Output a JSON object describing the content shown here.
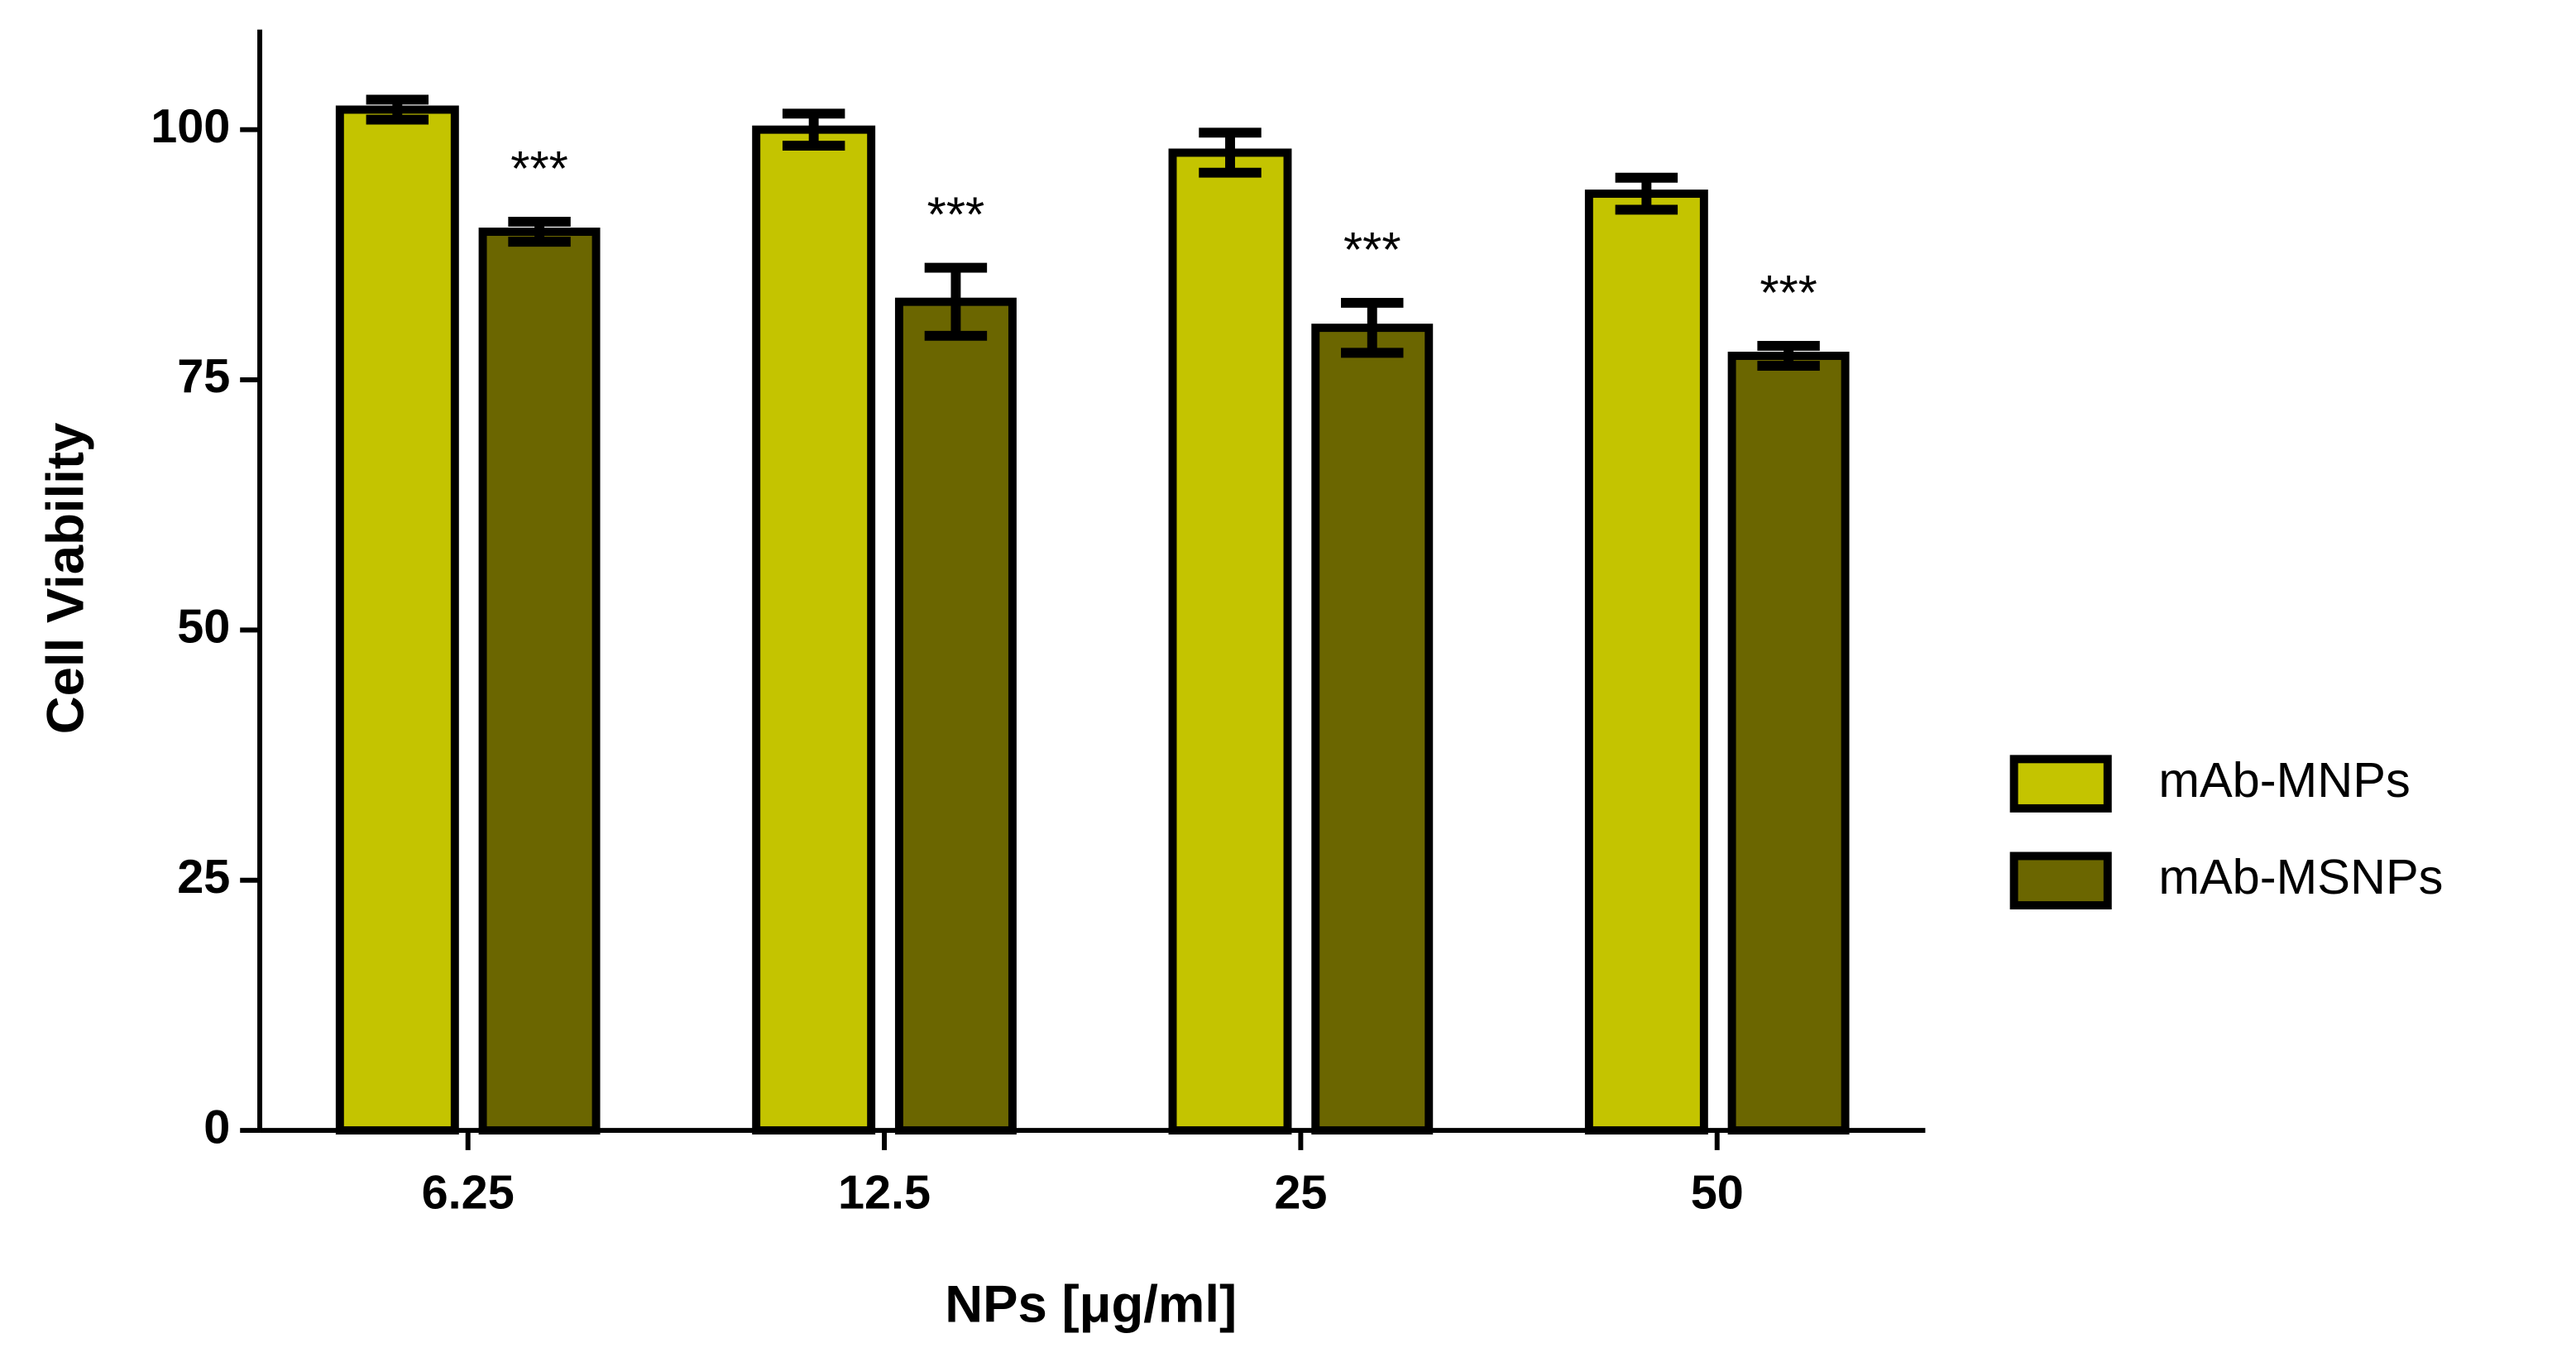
{
  "chart_data": {
    "type": "bar",
    "x_label": "NPs [μg/ml]",
    "y_label": "Cell Viability",
    "categories": [
      "6.25",
      "12.5",
      "25",
      "50"
    ],
    "series": [
      {
        "name": "mAb-MNPs",
        "color": "#c4c400",
        "values": [
          102,
          100,
          97.7,
          93.6
        ],
        "errors": [
          1,
          1.6,
          2,
          1.6
        ]
      },
      {
        "name": "mAb-MSNPs",
        "color": "#6b6600",
        "values": [
          89.8,
          82.8,
          80.2,
          77.4
        ],
        "errors": [
          1,
          3.4,
          2.5,
          1
        ],
        "annotations": [
          "***",
          "***",
          "***",
          "***"
        ]
      }
    ],
    "ylim": [
      0,
      110
    ],
    "yticks": [
      0,
      25,
      50,
      75,
      100
    ],
    "legend": "right"
  }
}
